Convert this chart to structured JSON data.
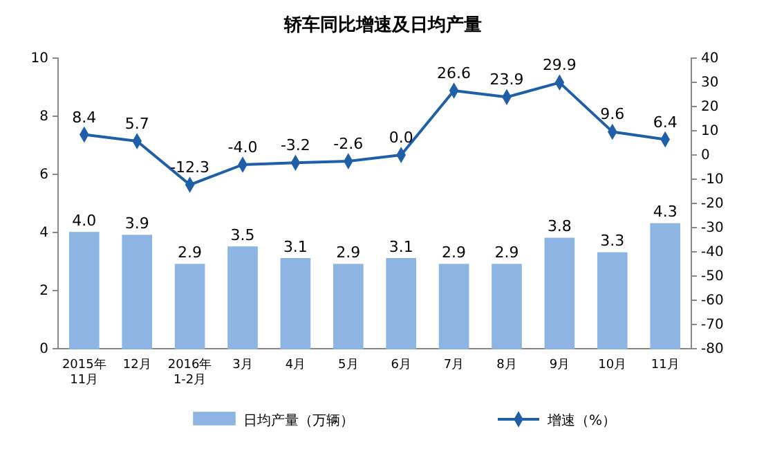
{
  "chart_data": {
    "type": "bar",
    "title": "轿车同比增速及日均产量",
    "categories": [
      "2015年\n11月",
      "12月",
      "2016年\n1-2月",
      "3月",
      "4月",
      "5月",
      "6月",
      "7月",
      "8月",
      "9月",
      "10月",
      "11月"
    ],
    "series": [
      {
        "name": "日均产量（万辆）",
        "color": "#8db4e2",
        "values": [
          4.0,
          3.9,
          2.9,
          3.5,
          3.1,
          2.9,
          3.1,
          2.9,
          2.9,
          3.8,
          3.3,
          4.3
        ],
        "value_labels": [
          "4.0",
          "3.9",
          "2.9",
          "3.5",
          "3.1",
          "2.9",
          "3.1",
          "2.9",
          "2.9",
          "3.8",
          "3.3",
          "4.3"
        ]
      },
      {
        "name": "增速（%）",
        "type": "line",
        "axis": "y2",
        "color": "#1f5fa8",
        "marker": "diamond",
        "values": [
          8.4,
          5.7,
          -12.3,
          -4.0,
          -3.2,
          -2.6,
          0.0,
          26.6,
          23.9,
          29.9,
          9.6,
          6.4
        ],
        "value_labels": [
          "8.4",
          "5.7",
          "-12.3",
          "-4.0",
          "-3.2",
          "-2.6",
          "0.0",
          "26.6",
          "23.9",
          "29.9",
          "9.6",
          "6.4"
        ]
      }
    ],
    "ylim": [
      0,
      10
    ],
    "yticks": [
      0,
      2,
      4,
      6,
      8,
      10
    ],
    "y2lim": [
      -80,
      40
    ],
    "y2ticks": [
      -80,
      -70,
      -60,
      -50,
      -40,
      -30,
      -20,
      -10,
      0,
      10,
      20,
      30,
      40
    ],
    "legend": "bottom",
    "grid": false
  }
}
